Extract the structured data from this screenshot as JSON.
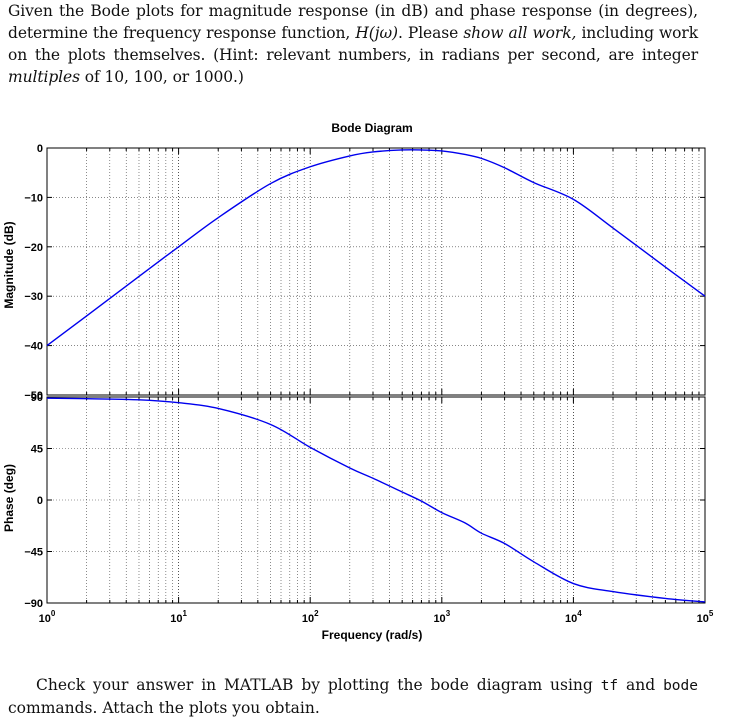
{
  "problem": {
    "intro": "Given the Bode plots for magnitude response (in dB) and phase response (in degrees), determine the frequency response function,",
    "func": "H(jω)",
    "after_func": ". Please",
    "emphasis": "show all work,",
    "rest": "including work on the plots themselves. (Hint: relevant numbers, in radians per second, are integer",
    "hint_emphasis": "multiples",
    "hint_end": "of 10, 100, or 1000.)"
  },
  "footer": {
    "pre": "Check your answer in MATLAB by plotting the bode diagram using",
    "code1": "tf",
    "mid": "and",
    "code2": "bode",
    "post": "commands. Attach the plots you obtain."
  },
  "chart_data": {
    "type": "line",
    "title": "Bode Diagram",
    "xlabel": "Frequency  (rad/s)",
    "x_scale": "log",
    "xlim": [
      1,
      100000
    ],
    "x_tick_labels": [
      "10^0",
      "10^1",
      "10^2",
      "10^3",
      "10^4",
      "10^5"
    ],
    "line_color": "#0000ee",
    "grid": true,
    "panels": [
      {
        "name": "magnitude",
        "ylabel": "Magnitude (dB)",
        "ylim": [
          -50,
          0
        ],
        "y_ticks": [
          0,
          -10,
          -20,
          -30,
          -40,
          -50
        ],
        "x": [
          1,
          2,
          5,
          10,
          20,
          50,
          100,
          200,
          300,
          500,
          700,
          1000,
          1500,
          2000,
          3000,
          5000,
          10000,
          20000,
          50000,
          100000
        ],
        "y": [
          -40,
          -34,
          -26,
          -20,
          -14.1,
          -7.2,
          -3.8,
          -1.6,
          -0.8,
          -0.4,
          -0.4,
          -0.6,
          -1.3,
          -2.1,
          -4.0,
          -7.0,
          -10.4,
          -16.2,
          -24.1,
          -30
        ]
      },
      {
        "name": "phase",
        "ylabel": "Phase (deg)",
        "ylim": [
          -90,
          90
        ],
        "y_ticks": [
          90,
          45,
          0,
          -45,
          -90
        ],
        "x": [
          1,
          2,
          5,
          10,
          20,
          50,
          100,
          200,
          300,
          500,
          700,
          1000,
          1500,
          2000,
          3000,
          5000,
          10000,
          20000,
          50000,
          100000
        ],
        "y": [
          89,
          88.5,
          87.5,
          85,
          80,
          66,
          46,
          28,
          19,
          7,
          -1,
          -11,
          -20,
          -29,
          -38,
          -54,
          -73,
          -80,
          -86,
          -89
        ]
      }
    ]
  }
}
